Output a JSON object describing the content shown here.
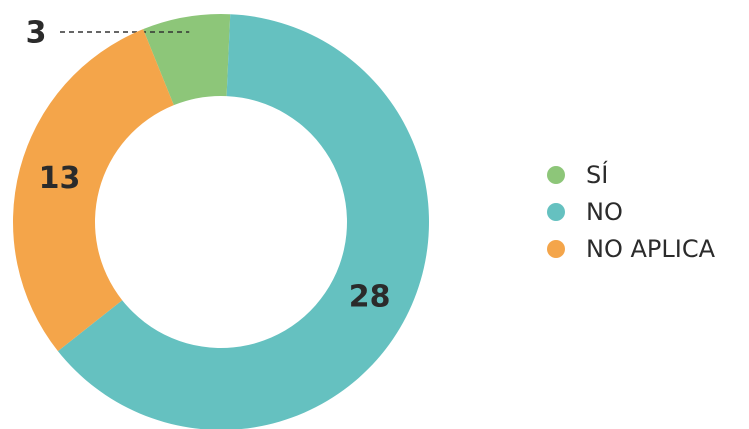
{
  "chart_data": {
    "type": "donut",
    "categories": [
      "SÍ",
      "NO",
      "NO APLICA"
    ],
    "values": [
      3,
      28,
      13
    ],
    "colors": [
      "#8dc679",
      "#65c1c0",
      "#f4a54a"
    ],
    "legend": "right"
  }
}
